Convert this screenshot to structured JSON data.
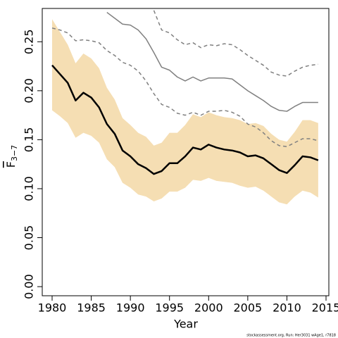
{
  "chart_data": {
    "type": "line",
    "xlabel": "Year",
    "ylabel": "F",
    "ylabel_sub": "3−7",
    "footnote": "stockassessment.org, Run: Her3031 wAge1, r7818",
    "x": [
      1980,
      1981,
      1982,
      1983,
      1984,
      1985,
      1986,
      1987,
      1988,
      1989,
      1990,
      1991,
      1992,
      1993,
      1994,
      1995,
      1996,
      1997,
      1998,
      1999,
      2000,
      2001,
      2002,
      2003,
      2004,
      2005,
      2006,
      2007,
      2008,
      2009,
      2010,
      2011,
      2012,
      2013,
      2014
    ],
    "xlim": [
      1978.74,
      2015.36
    ],
    "xticks": [
      1980,
      1985,
      1990,
      1995,
      2000,
      2005,
      2010,
      2015
    ],
    "ylim": [
      -0.0093,
      0.284
    ],
    "yticks": [
      {
        "value": 0,
        "label": "0.00"
      },
      0.05,
      {
        "value": 0.1,
        "label": "0.10"
      },
      0.15,
      {
        "value": 0.2,
        "label": "0.20"
      },
      0.25
    ],
    "band": {
      "color": "#f5deb3",
      "upper": [
        0.273,
        0.26,
        0.247,
        0.228,
        0.238,
        0.233,
        0.223,
        0.203,
        0.191,
        0.172,
        0.165,
        0.157,
        0.153,
        0.144,
        0.147,
        0.157,
        0.157,
        0.165,
        0.176,
        0.173,
        0.178,
        0.175,
        0.173,
        0.172,
        0.17,
        0.166,
        0.167,
        0.164,
        0.156,
        0.15,
        0.148,
        0.158,
        0.17,
        0.17,
        0.167
      ],
      "lower": [
        0.18,
        0.174,
        0.167,
        0.152,
        0.157,
        0.154,
        0.147,
        0.13,
        0.122,
        0.106,
        0.101,
        0.094,
        0.092,
        0.087,
        0.09,
        0.097,
        0.097,
        0.101,
        0.109,
        0.108,
        0.111,
        0.108,
        0.107,
        0.106,
        0.103,
        0.101,
        0.102,
        0.098,
        0.092,
        0.086,
        0.084,
        0.092,
        0.098,
        0.096,
        0.091
      ]
    },
    "series": [
      {
        "color": "#000000",
        "width": 2.5,
        "dashed": false,
        "values": [
          0.226,
          0.217,
          0.208,
          0.19,
          0.198,
          0.193,
          0.183,
          0.166,
          0.156,
          0.139,
          0.133,
          0.125,
          0.121,
          0.115,
          0.118,
          0.126,
          0.126,
          0.133,
          0.142,
          0.14,
          0.145,
          0.142,
          0.14,
          0.139,
          0.137,
          0.133,
          0.134,
          0.131,
          0.125,
          0.119,
          0.116,
          0.124,
          0.133,
          0.132,
          0.129
        ]
      },
      {
        "color": "#808080",
        "width": 1.5,
        "dashed": false,
        "values": [
          null,
          null,
          null,
          null,
          null,
          null,
          null,
          0.28,
          0.274,
          0.268,
          0.267,
          0.262,
          0.253,
          0.239,
          0.224,
          0.221,
          0.214,
          0.21,
          0.214,
          0.21,
          0.213,
          0.213,
          0.213,
          0.212,
          0.206,
          0.2,
          0.195,
          0.19,
          0.184,
          0.18,
          0.179,
          0.184,
          0.188,
          0.188,
          0.188
        ]
      },
      {
        "color": "#808080",
        "width": 1.5,
        "dashed": true,
        "values": [
          null,
          null,
          null,
          null,
          null,
          null,
          null,
          null,
          null,
          null,
          null,
          null,
          null,
          0.282,
          0.262,
          0.259,
          0.252,
          0.247,
          0.249,
          0.244,
          0.247,
          0.246,
          0.248,
          0.247,
          0.242,
          0.236,
          0.231,
          0.226,
          0.219,
          0.216,
          0.215,
          0.22,
          0.224,
          0.226,
          0.227
        ]
      },
      {
        "color": "#808080",
        "width": 1.5,
        "dashed": true,
        "values": [
          0.264,
          0.262,
          0.259,
          0.251,
          0.252,
          0.251,
          0.249,
          0.241,
          0.236,
          0.229,
          0.226,
          0.22,
          0.21,
          0.197,
          0.186,
          0.183,
          0.177,
          0.175,
          0.178,
          0.175,
          0.179,
          0.179,
          0.18,
          0.178,
          0.174,
          0.166,
          0.163,
          0.157,
          0.149,
          0.144,
          0.143,
          0.147,
          0.151,
          0.151,
          0.149
        ]
      }
    ]
  }
}
